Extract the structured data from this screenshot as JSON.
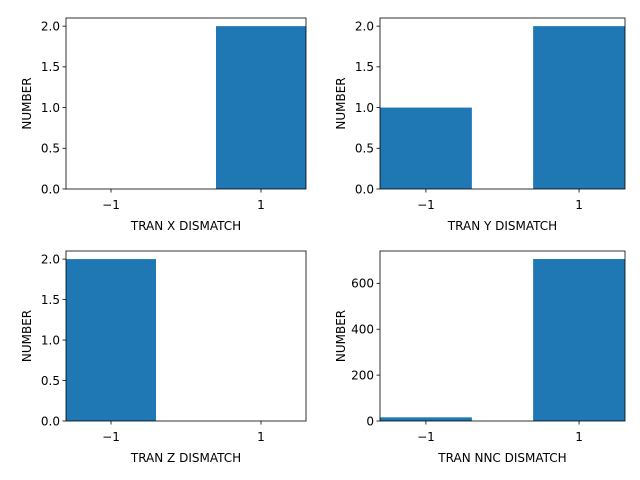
{
  "chart_data": [
    {
      "type": "bar",
      "categories": [
        "−1",
        "1"
      ],
      "x": [
        -1,
        1
      ],
      "values": [
        0,
        2
      ],
      "xlabel": "TRAN X DISMATCH",
      "ylabel": "NUMBER",
      "ylim": [
        0,
        2.1
      ],
      "xticks": [
        "−1",
        "1"
      ],
      "yticks": [
        "0.0",
        "0.5",
        "1.0",
        "1.5",
        "2.0"
      ],
      "ytick_values": [
        0,
        0.5,
        1,
        1.5,
        2
      ],
      "color": "#1f77b4",
      "grid": false
    },
    {
      "type": "bar",
      "categories": [
        "−1",
        "1"
      ],
      "x": [
        -1,
        1
      ],
      "values": [
        1,
        2
      ],
      "xlabel": "TRAN Y DISMATCH",
      "ylabel": "NUMBER",
      "ylim": [
        0,
        2.1
      ],
      "xticks": [
        "−1",
        "1"
      ],
      "yticks": [
        "0.0",
        "0.5",
        "1.0",
        "1.5",
        "2.0"
      ],
      "ytick_values": [
        0,
        0.5,
        1,
        1.5,
        2
      ],
      "color": "#1f77b4",
      "grid": false
    },
    {
      "type": "bar",
      "categories": [
        "−1",
        "1"
      ],
      "x": [
        -1,
        1
      ],
      "values": [
        2,
        0
      ],
      "xlabel": "TRAN Z DISMATCH",
      "ylabel": "NUMBER",
      "ylim": [
        0,
        2.1
      ],
      "xticks": [
        "−1",
        "1"
      ],
      "yticks": [
        "0.0",
        "0.5",
        "1.0",
        "1.5",
        "2.0"
      ],
      "ytick_values": [
        0,
        0.5,
        1,
        1.5,
        2
      ],
      "color": "#1f77b4",
      "grid": false
    },
    {
      "type": "bar",
      "categories": [
        "−1",
        "1"
      ],
      "x": [
        -1,
        1
      ],
      "values": [
        16,
        706
      ],
      "xlabel": "TRAN NNC DISMATCH",
      "ylabel": "NUMBER",
      "ylim": [
        0,
        741
      ],
      "xticks": [
        "−1",
        "1"
      ],
      "yticks": [
        "0",
        "200",
        "400",
        "600"
      ],
      "ytick_values": [
        0,
        200,
        400,
        600
      ],
      "color": "#1f77b4",
      "grid": false
    }
  ]
}
